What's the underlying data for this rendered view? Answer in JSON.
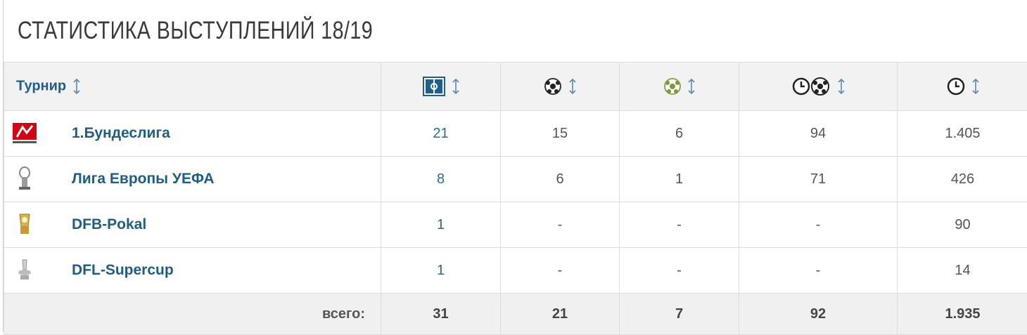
{
  "header": {
    "title": "СТАТИСТИКА ВЫСТУПЛЕНИЙ 18/19"
  },
  "table": {
    "columns": [
      "Турнир"
    ],
    "rows": [
      {
        "name": "1.Бундеслига",
        "values": [
          "21",
          "15",
          "6",
          "94",
          "1.405"
        ]
      },
      {
        "name": "Лига Европы УЕФА",
        "values": [
          "8",
          "6",
          "1",
          "71",
          "426"
        ]
      },
      {
        "name": "DFB-Pokal",
        "values": [
          "1",
          "-",
          "-",
          "-",
          "90"
        ]
      },
      {
        "name": "DFL-Supercup",
        "values": [
          "1",
          "-",
          "-",
          "-",
          "14"
        ]
      }
    ],
    "footer": {
      "label": "всего:",
      "values": [
        "31",
        "21",
        "7",
        "92",
        "1.935"
      ]
    }
  }
}
